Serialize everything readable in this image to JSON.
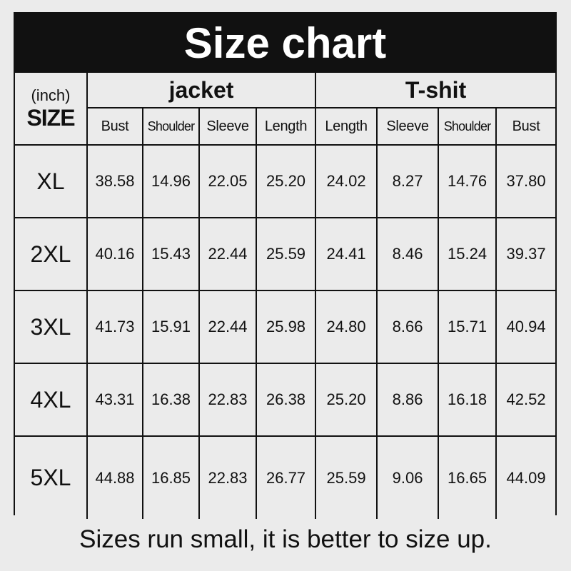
{
  "title": "Size chart",
  "unit": "(inch)",
  "size_label": "SIZE",
  "groups": [
    "jacket",
    "T-shit"
  ],
  "columns": [
    "Bust",
    "Shoulder",
    "Sleeve",
    "Length",
    "Length",
    "Sleeve",
    "Shoulder",
    "Bust"
  ],
  "rows": [
    {
      "size": "XL",
      "values": [
        "38.58",
        "14.96",
        "22.05",
        "25.20",
        "24.02",
        "8.27",
        "14.76",
        "37.80"
      ]
    },
    {
      "size": "2XL",
      "values": [
        "40.16",
        "15.43",
        "22.44",
        "25.59",
        "24.41",
        "8.46",
        "15.24",
        "39.37"
      ]
    },
    {
      "size": "3XL",
      "values": [
        "41.73",
        "15.91",
        "22.44",
        "25.98",
        "24.80",
        "8.66",
        "15.71",
        "40.94"
      ]
    },
    {
      "size": "4XL",
      "values": [
        "43.31",
        "16.38",
        "22.83",
        "26.38",
        "25.20",
        "8.86",
        "16.18",
        "42.52"
      ]
    },
    {
      "size": "5XL",
      "values": [
        "44.88",
        "16.85",
        "22.83",
        "26.77",
        "25.59",
        "9.06",
        "16.65",
        "44.09"
      ]
    }
  ],
  "note": "Sizes run small, it is better to size up."
}
